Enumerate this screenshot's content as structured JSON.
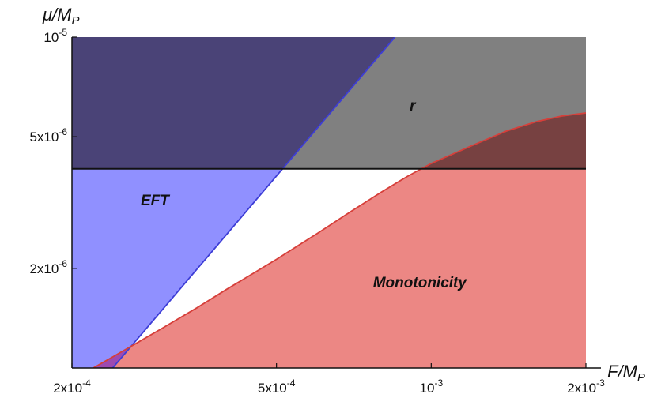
{
  "chart_data": {
    "type": "area",
    "xlabel": "F/M_P",
    "ylabel": "μ/M_P",
    "xscale": "log",
    "yscale": "log",
    "xlim": [
      0.0002,
      0.002
    ],
    "ylim": [
      1e-06,
      1e-05
    ],
    "x_ticks": [
      {
        "value": 0.0002,
        "label": "2x10",
        "exp": "-4"
      },
      {
        "value": 0.0005,
        "label": "5x10",
        "exp": "-4"
      },
      {
        "value": 0.001,
        "label": "10",
        "exp": "-3"
      },
      {
        "value": 0.002,
        "label": "2x10",
        "exp": "-3"
      }
    ],
    "y_ticks": [
      {
        "value": 1e-05,
        "label": "10",
        "exp": "-5"
      },
      {
        "value": 5e-06,
        "label": "5x10",
        "exp": "-6"
      },
      {
        "value": 2e-06,
        "label": "2x10",
        "exp": "-6"
      }
    ],
    "regions": [
      {
        "name": "r",
        "label": "r",
        "color": "#808080",
        "boundary": {
          "type": "hline",
          "y": 4e-06
        },
        "fill": "above",
        "label_at": {
          "x": 0.00092,
          "y": 6e-06
        }
      },
      {
        "name": "EFT",
        "label": "EFT",
        "color": "#9090ff",
        "edge_color": "#3d3dd6",
        "boundary": {
          "type": "line",
          "x": [
            0.00024,
            0.00085
          ],
          "y": [
            1e-06,
            1e-05
          ]
        },
        "fill": "left",
        "label_at": {
          "x": 0.00029,
          "y": 3.1e-06
        }
      },
      {
        "name": "Monotonicity",
        "label": "Monotonicity",
        "color": "#ec8784",
        "edge_color": "#d63f3a",
        "boundary": {
          "type": "curve",
          "x": [
            0.00022,
            0.00024,
            0.00027,
            0.0003,
            0.00035,
            0.0004,
            0.00045,
            0.0005,
            0.0006,
            0.0007,
            0.0008,
            0.0009,
            0.001,
            0.0012,
            0.0014,
            0.0016,
            0.0018,
            0.002
          ],
          "y": [
            1e-06,
            1.08e-06,
            1.2e-06,
            1.32e-06,
            1.52e-06,
            1.73e-06,
            1.93e-06,
            2.13e-06,
            2.55e-06,
            2.98e-06,
            3.4e-06,
            3.8e-06,
            4.15e-06,
            4.7e-06,
            5.2e-06,
            5.55e-06,
            5.78e-06,
            5.9e-06
          ]
        },
        "fill": "below",
        "label_at": {
          "x": 0.00095,
          "y": 1.75e-06
        }
      }
    ],
    "overlaps": [
      {
        "regions": [
          "r",
          "EFT"
        ],
        "color": "#4a4377"
      },
      {
        "regions": [
          "r",
          "Monotonicity"
        ],
        "color": "#774141"
      },
      {
        "regions": [
          "EFT",
          "Monotonicity"
        ],
        "color": "#9d4ab2"
      }
    ]
  }
}
